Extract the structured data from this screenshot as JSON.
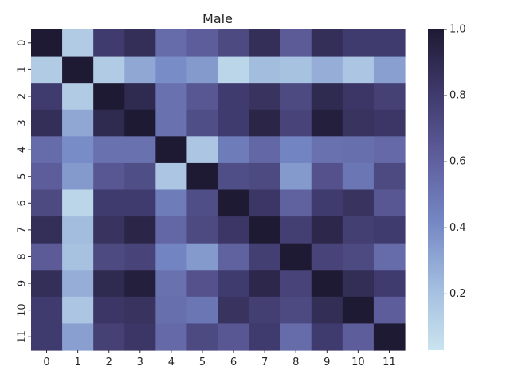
{
  "chart_data": {
    "type": "heatmap",
    "title": "Male",
    "xlabel": "",
    "ylabel": "",
    "x_categories": [
      "0",
      "1",
      "2",
      "3",
      "4",
      "5",
      "6",
      "7",
      "8",
      "9",
      "10",
      "11"
    ],
    "y_categories": [
      "0",
      "1",
      "2",
      "3",
      "4",
      "5",
      "6",
      "7",
      "8",
      "9",
      "10",
      "11"
    ],
    "values": [
      [
        1.0,
        0.15,
        0.8,
        0.87,
        0.55,
        0.62,
        0.72,
        0.87,
        0.63,
        0.87,
        0.8,
        0.8
      ],
      [
        0.15,
        1.0,
        0.15,
        0.3,
        0.4,
        0.35,
        0.1,
        0.22,
        0.2,
        0.28,
        0.18,
        0.33
      ],
      [
        0.8,
        0.15,
        1.0,
        0.9,
        0.52,
        0.65,
        0.8,
        0.85,
        0.72,
        0.9,
        0.83,
        0.77
      ],
      [
        0.87,
        0.3,
        0.9,
        1.0,
        0.52,
        0.7,
        0.8,
        0.93,
        0.75,
        0.97,
        0.85,
        0.83
      ],
      [
        0.55,
        0.4,
        0.52,
        0.52,
        1.0,
        0.18,
        0.47,
        0.57,
        0.43,
        0.52,
        0.53,
        0.56
      ],
      [
        0.62,
        0.35,
        0.65,
        0.7,
        0.18,
        1.0,
        0.7,
        0.72,
        0.35,
        0.68,
        0.5,
        0.72
      ],
      [
        0.72,
        0.1,
        0.8,
        0.8,
        0.47,
        0.7,
        1.0,
        0.83,
        0.6,
        0.8,
        0.85,
        0.65
      ],
      [
        0.87,
        0.22,
        0.85,
        0.93,
        0.57,
        0.72,
        0.83,
        1.0,
        0.78,
        0.92,
        0.78,
        0.8
      ],
      [
        0.63,
        0.2,
        0.72,
        0.75,
        0.43,
        0.35,
        0.6,
        0.78,
        1.0,
        0.75,
        0.72,
        0.55
      ],
      [
        0.87,
        0.28,
        0.9,
        0.97,
        0.52,
        0.68,
        0.8,
        0.92,
        0.75,
        1.0,
        0.88,
        0.8
      ],
      [
        0.8,
        0.18,
        0.83,
        0.85,
        0.53,
        0.5,
        0.85,
        0.78,
        0.72,
        0.88,
        1.0,
        0.62
      ],
      [
        0.8,
        0.33,
        0.77,
        0.83,
        0.56,
        0.72,
        0.65,
        0.8,
        0.55,
        0.8,
        0.62,
        1.0
      ]
    ],
    "color_range": [
      0.03,
      1.0
    ],
    "colorbar_ticks": [
      0.2,
      0.4,
      0.6,
      0.8,
      1.0
    ],
    "colorbar_tick_labels": [
      "0.2",
      "0.4",
      "0.6",
      "0.8",
      "1.0"
    ],
    "colormap": [
      "#c9e3ef",
      "#a2bcdf",
      "#7487c4",
      "#5f5e9d",
      "#3f3a6c",
      "#1f1a33"
    ],
    "grid": false,
    "legend": "colorbar-right"
  }
}
